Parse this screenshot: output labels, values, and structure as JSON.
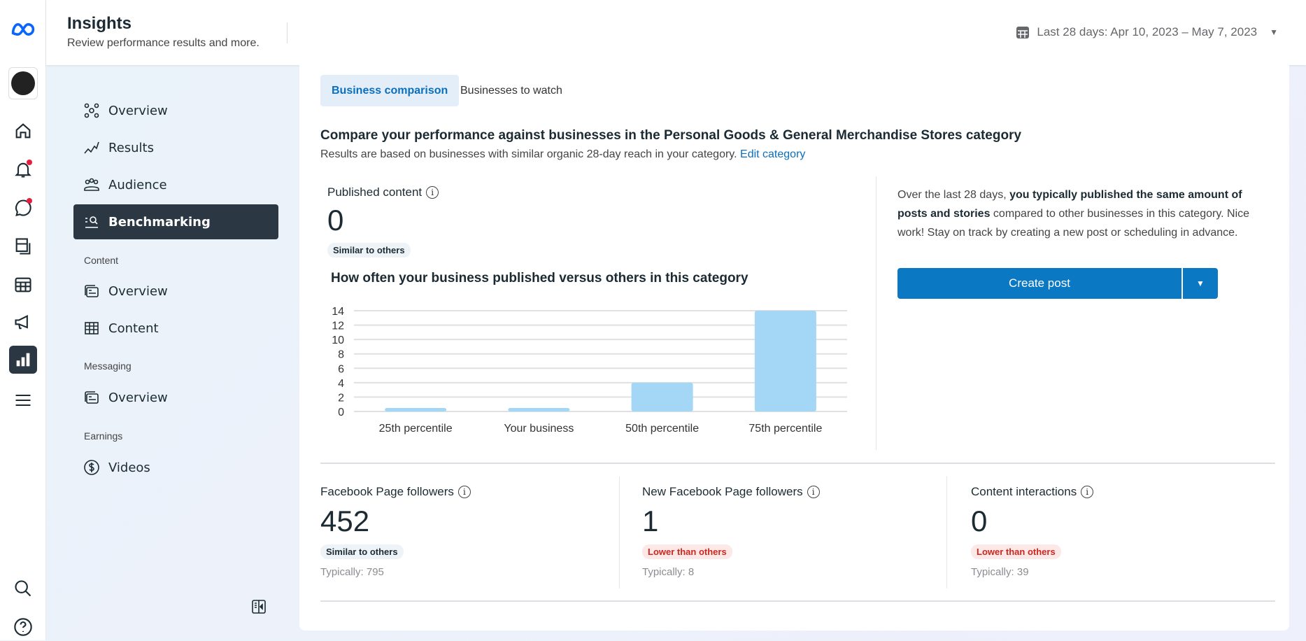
{
  "header": {
    "title": "Insights",
    "subtitle": "Review performance results and more.",
    "date_range": "Last 28 days: Apr 10, 2023 – May 7, 2023"
  },
  "rail": {
    "icons": [
      "meta-logo",
      "profile-avatar",
      "home-icon",
      "notifications-icon",
      "messages-icon",
      "posts-icon",
      "planner-icon",
      "ads-icon",
      "insights-icon",
      "menu-icon",
      "search-icon",
      "help-icon"
    ]
  },
  "sidebar": {
    "items": [
      {
        "label": "Overview"
      },
      {
        "label": "Results"
      },
      {
        "label": "Audience"
      },
      {
        "label": "Benchmarking"
      }
    ],
    "content_section": "Content",
    "content_items": [
      {
        "label": "Overview"
      },
      {
        "label": "Content"
      }
    ],
    "messaging_section": "Messaging",
    "messaging_items": [
      {
        "label": "Overview"
      }
    ],
    "earnings_section": "Earnings",
    "earnings_items": [
      {
        "label": "Videos"
      }
    ]
  },
  "tabs": [
    {
      "label": "Business comparison",
      "active": true
    },
    {
      "label": "Businesses to watch",
      "active": false
    }
  ],
  "main": {
    "heading": "Compare your performance against businesses in the Personal Goods & General Merchandise Stores category",
    "subheading": "Results are based on businesses with similar organic 28-day reach in your category.",
    "edit_link": "Edit category",
    "published": {
      "label": "Published content",
      "value": "0",
      "badge": "Similar to others"
    },
    "chart_title": "How often your business published versus others in this category",
    "summary_pre": "Over the last 28 days, ",
    "summary_bold": "you typically published the same amount of posts and stories",
    "summary_post": " compared to other businesses in this category. Nice work! Stay on track by creating a new post or scheduling in advance.",
    "create_post": "Create post",
    "stats": [
      {
        "label": "Facebook Page followers",
        "value": "452",
        "badge": "Similar to others",
        "badge_type": "similar",
        "typical": "Typically: 795"
      },
      {
        "label": "New Facebook Page followers",
        "value": "1",
        "badge": "Lower than others",
        "badge_type": "lower",
        "typical": "Typically: 8"
      },
      {
        "label": "Content interactions",
        "value": "0",
        "badge": "Lower than others",
        "badge_type": "lower",
        "typical": "Typically: 39"
      }
    ]
  },
  "chart_data": {
    "type": "bar",
    "title": "How often your business published versus others in this category",
    "categories": [
      "25th percentile",
      "Your business",
      "50th percentile",
      "75th percentile"
    ],
    "values": [
      0,
      0,
      4,
      14
    ],
    "yticks": [
      0,
      2,
      4,
      6,
      8,
      10,
      12,
      14
    ],
    "ylim": [
      0,
      14
    ],
    "grid": true,
    "bar_color": "#a3d7f5"
  },
  "colors": {
    "accent": "#0a78c2",
    "active_nav": "#2b3843",
    "lower": "#c8281e"
  }
}
